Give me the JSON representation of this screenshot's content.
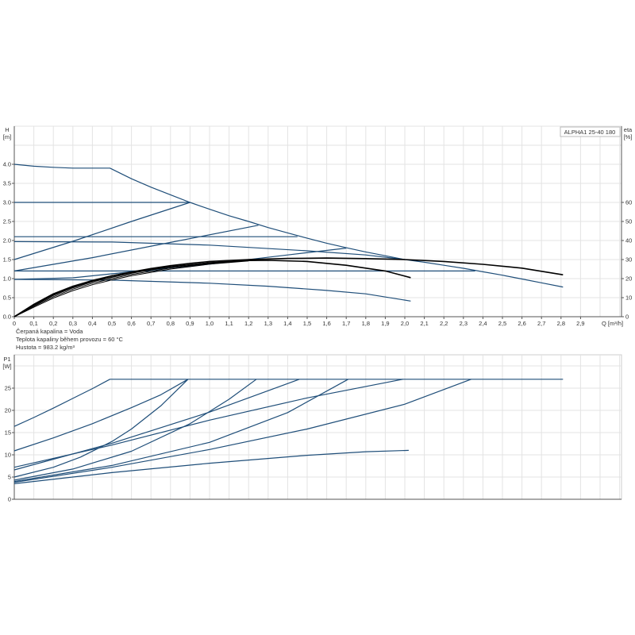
{
  "chart_data": [
    {
      "type": "line",
      "title": "",
      "legend_box": "ALPHA1 25-40 180",
      "legend_position": "top-right",
      "xlabel": "Q [m³/h]",
      "ylabel": "H\n[m]",
      "y2label": "eta\n[%]",
      "xlim": [
        0,
        3.1
      ],
      "ylim": [
        0,
        5.0
      ],
      "y2lim": [
        0,
        100
      ],
      "grid": true,
      "x_ticks": [
        "0",
        "0,1",
        "0,2",
        "0,3",
        "0,4",
        "0,5",
        "0,6",
        "0,7",
        "0,8",
        "0,9",
        "1,0",
        "1,1",
        "1,2",
        "1,3",
        "1,4",
        "1,5",
        "1,6",
        "1,7",
        "1,8",
        "1,9",
        "2,0",
        "2,1",
        "2,2",
        "2,3",
        "2,4",
        "2,5",
        "2,6",
        "2,7",
        "2,8",
        "2,9"
      ],
      "y_ticks": [
        "0.0",
        "0.5",
        "1.0",
        "1.5",
        "2.0",
        "2.5",
        "3.0",
        "3.5",
        "4.0"
      ],
      "y2_ticks": [
        "0",
        "10",
        "20",
        "30",
        "40",
        "50",
        "60"
      ],
      "colors": {
        "head": "#1f4e79",
        "efficiency": "#000000"
      },
      "head_series": [
        {
          "points": [
            [
              0,
              4.0
            ],
            [
              0.1,
              3.95
            ],
            [
              0.2,
              3.92
            ],
            [
              0.3,
              3.9
            ],
            [
              0.49,
              3.9
            ],
            [
              0.6,
              3.62
            ],
            [
              0.7,
              3.4
            ],
            [
              0.8,
              3.2
            ],
            [
              0.9,
              3.0
            ],
            [
              1.0,
              2.82
            ],
            [
              1.1,
              2.65
            ],
            [
              1.2,
              2.5
            ],
            [
              1.3,
              2.34
            ],
            [
              1.4,
              2.2
            ],
            [
              1.5,
              2.06
            ],
            [
              1.6,
              1.93
            ],
            [
              1.7,
              1.81
            ],
            [
              1.8,
              1.7
            ],
            [
              1.9,
              1.6
            ],
            [
              2.0,
              1.5
            ],
            [
              2.1,
              1.43
            ],
            [
              2.2,
              1.35
            ],
            [
              2.3,
              1.27
            ],
            [
              2.4,
              1.18
            ],
            [
              2.5,
              1.09
            ],
            [
              2.6,
              0.99
            ],
            [
              2.7,
              0.89
            ],
            [
              2.81,
              0.78
            ]
          ]
        },
        {
          "points": [
            [
              0,
              3.0
            ],
            [
              0.9,
              3.0
            ]
          ]
        },
        {
          "points": [
            [
              0,
              1.5
            ],
            [
              0.3,
              1.98
            ],
            [
              0.6,
              2.5
            ],
            [
              0.9,
              3.0
            ]
          ]
        },
        {
          "points": [
            [
              0,
              2.1
            ],
            [
              1.45,
              2.1
            ]
          ]
        },
        {
          "points": [
            [
              0,
              1.2
            ],
            [
              0.4,
              1.55
            ],
            [
              0.8,
              1.95
            ],
            [
              1.25,
              2.4
            ]
          ]
        },
        {
          "points": [
            [
              0,
              1.97
            ],
            [
              0.5,
              1.96
            ],
            [
              1.0,
              1.88
            ],
            [
              1.5,
              1.73
            ],
            [
              1.8,
              1.62
            ],
            [
              2.0,
              1.5
            ]
          ]
        },
        {
          "points": [
            [
              0,
              0.98
            ],
            [
              0.3,
              1.02
            ],
            [
              0.6,
              1.18
            ],
            [
              1.0,
              1.38
            ],
            [
              1.4,
              1.62
            ],
            [
              1.7,
              1.8
            ]
          ]
        },
        {
          "points": [
            [
              0,
              1.2
            ],
            [
              2.36,
              1.2
            ]
          ]
        },
        {
          "points": [
            [
              0,
              0.98
            ],
            [
              0.5,
              0.96
            ],
            [
              1.0,
              0.88
            ],
            [
              1.3,
              0.8
            ],
            [
              1.6,
              0.69
            ],
            [
              1.8,
              0.6
            ],
            [
              2.03,
              0.41
            ]
          ]
        }
      ],
      "efficiency_series": [
        {
          "points": [
            [
              0,
              0
            ],
            [
              0.1,
              6.5
            ],
            [
              0.2,
              12
            ],
            [
              0.3,
              16
            ],
            [
              0.4,
              19
            ],
            [
              0.5,
              21.5
            ],
            [
              0.6,
              23.5
            ],
            [
              0.7,
              25.3
            ],
            [
              0.8,
              26.8
            ],
            [
              0.9,
              28
            ],
            [
              1.0,
              29
            ],
            [
              1.2,
              30
            ],
            [
              1.4,
              30.6
            ],
            [
              1.6,
              30.8
            ],
            [
              1.8,
              30.5
            ],
            [
              2.0,
              30
            ],
            [
              2.2,
              29
            ],
            [
              2.4,
              27.5
            ],
            [
              2.6,
              25.5
            ],
            [
              2.81,
              22
            ]
          ]
        },
        {
          "points": [
            [
              0,
              0
            ],
            [
              0.1,
              6
            ],
            [
              0.2,
              11.3
            ],
            [
              0.3,
              15.3
            ],
            [
              0.4,
              18.4
            ],
            [
              0.5,
              20.8
            ],
            [
              0.6,
              22.9
            ],
            [
              0.7,
              24.7
            ],
            [
              0.8,
              26.2
            ],
            [
              1.0,
              28.3
            ],
            [
              1.2,
              29.5
            ],
            [
              1.3,
              29.6
            ],
            [
              1.5,
              29
            ],
            [
              1.7,
              27
            ],
            [
              1.9,
              24
            ],
            [
              2.03,
              20.5
            ]
          ]
        },
        {
          "points": [
            [
              0,
              0
            ],
            [
              0.1,
              5.5
            ],
            [
              0.2,
              10.5
            ],
            [
              0.3,
              14.5
            ],
            [
              0.4,
              17.6
            ],
            [
              0.5,
              20
            ],
            [
              0.6,
              22.2
            ],
            [
              0.8,
              25.6
            ],
            [
              1.0,
              28
            ],
            [
              1.2,
              29.5
            ]
          ]
        },
        {
          "points": [
            [
              0,
              0
            ],
            [
              0.1,
              5
            ],
            [
              0.2,
              9.8
            ],
            [
              0.3,
              13.7
            ],
            [
              0.4,
              16.8
            ],
            [
              0.5,
              19.3
            ],
            [
              0.6,
              21.5
            ],
            [
              0.8,
              25
            ],
            [
              1.0,
              27.6
            ],
            [
              1.2,
              29.3
            ]
          ]
        }
      ]
    },
    {
      "type": "line",
      "title": "",
      "xlabel": "",
      "ylabel": "P1\n[W]",
      "xlim": [
        0,
        3.1
      ],
      "ylim": [
        0,
        32.5
      ],
      "grid": true,
      "y_ticks": [
        "0",
        "5",
        "10",
        "15",
        "20",
        "25"
      ],
      "colors": {
        "power": "#1f4e79"
      },
      "power_series": [
        {
          "points": [
            [
              0,
              16.4
            ],
            [
              0.1,
              18.4
            ],
            [
              0.2,
              20.5
            ],
            [
              0.3,
              22.7
            ],
            [
              0.4,
              24.9
            ],
            [
              0.49,
              27
            ],
            [
              2.81,
              27
            ]
          ]
        },
        {
          "points": [
            [
              0,
              10.9
            ],
            [
              0.2,
              13.8
            ],
            [
              0.4,
              17
            ],
            [
              0.6,
              20.6
            ],
            [
              0.75,
              23.5
            ],
            [
              0.89,
              27
            ]
          ]
        },
        {
          "points": [
            [
              0,
              5.0
            ],
            [
              0.2,
              7.2
            ],
            [
              0.34,
              9.5
            ],
            [
              0.5,
              13
            ],
            [
              0.6,
              15.8
            ],
            [
              0.75,
              21
            ],
            [
              0.89,
              27
            ]
          ]
        },
        {
          "points": [
            [
              0,
              7.2
            ],
            [
              0.5,
              12.2
            ],
            [
              1.0,
              17.8
            ],
            [
              1.5,
              22.8
            ],
            [
              1.99,
              27
            ]
          ]
        },
        {
          "points": [
            [
              0,
              6.6
            ],
            [
              0.5,
              12.6
            ],
            [
              1.0,
              19.6
            ],
            [
              1.46,
              27
            ]
          ]
        },
        {
          "points": [
            [
              0,
              4.3
            ],
            [
              0.3,
              6.8
            ],
            [
              0.6,
              10.8
            ],
            [
              0.9,
              17
            ],
            [
              1.1,
              22.5
            ],
            [
              1.24,
              27
            ]
          ]
        },
        {
          "points": [
            [
              0,
              4.0
            ],
            [
              0.5,
              7.6
            ],
            [
              1.0,
              12.8
            ],
            [
              1.4,
              19.5
            ],
            [
              1.71,
              27
            ]
          ]
        },
        {
          "points": [
            [
              0,
              3.8
            ],
            [
              0.5,
              7.2
            ],
            [
              1.0,
              11.2
            ],
            [
              1.5,
              15.8
            ],
            [
              2.0,
              21.4
            ],
            [
              2.34,
              27
            ]
          ]
        },
        {
          "points": [
            [
              0,
              3.5
            ],
            [
              0.5,
              6
            ],
            [
              1.0,
              8.1
            ],
            [
              1.5,
              9.9
            ],
            [
              1.8,
              10.7
            ],
            [
              2.02,
              11
            ]
          ]
        }
      ]
    }
  ],
  "fluid_info": {
    "liquid": "Čerpaná kapalina = Voda",
    "temperature": "Teplota kapaliny během provozu = 60 °C",
    "density": "Hustota = 983.2 kg/m³"
  }
}
